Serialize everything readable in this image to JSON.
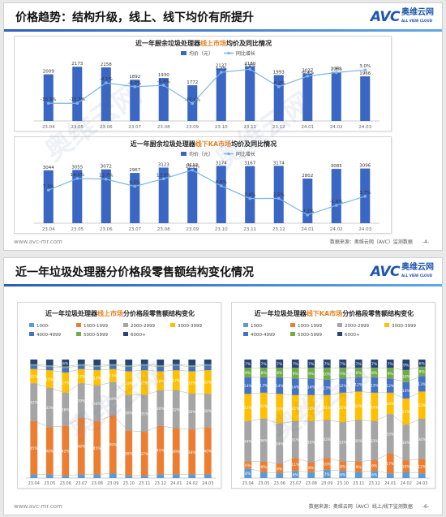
{
  "slide1": {
    "title": "价格趋势：结构升级，线上、线下均价有所提升",
    "logo": {
      "brand": "AVC",
      "name_cn": "奥维云网",
      "name_en": "ALL VIEW CLOUD"
    },
    "footer_url": "www.avc-mr.com",
    "footer_source": "数据来源：奥维云网（AVC）监测数据",
    "page_number": "-4-"
  },
  "slide2": {
    "title": "近一年垃圾处理器分价格段零售额结构变化情况",
    "logo": {
      "brand": "AVC",
      "name_cn": "奥维云网",
      "name_en": "ALL VIEW CLOUD"
    },
    "footer_url": "www.avc-mr.com",
    "footer_source": "数据来源：奥维云网（AVC）线上/线下监测数据",
    "page_number": "-6-"
  },
  "watermark": "奥维云网",
  "colors": {
    "bar": "#3a66c4",
    "line": "#7fb5e8",
    "accent": "#e97e1c",
    "brand": "#1d54b0",
    "segments": [
      "#5b9bd5",
      "#ed7d31",
      "#a5a5a5",
      "#ffc000",
      "#4472c4",
      "#70ad47",
      "#264478"
    ]
  },
  "chart_data": [
    {
      "type": "bar",
      "title_prefix": "近一年厨余垃圾处理器",
      "title_highlight": "线上市场",
      "title_suffix": "均价及同比情况",
      "categories": [
        "23.04",
        "23.05",
        "23.06",
        "23.07",
        "23.08",
        "23.09",
        "23.10",
        "23.11",
        "23.12",
        "24.01",
        "24.02",
        "24.03"
      ],
      "series": [
        {
          "name": "均价（元）",
          "type": "bar",
          "values": [
            2009,
            2173,
            2158,
            1892,
            1930,
            1772,
            2137,
            2180,
            1993,
            2027,
            2061,
            1966
          ]
        },
        {
          "name": "同比增长",
          "type": "line",
          "values": [
            "-15.3%",
            "-15.3%",
            "-4.1%",
            "-6.2%",
            "-5.4%",
            "-15.4%",
            "1.7%",
            "3.4%",
            "-6.2%",
            "-0.4%",
            "1.6%",
            "3.0%"
          ]
        }
      ],
      "ylim_bar": [
        1000,
        2300
      ],
      "ylim_line": [
        -25,
        8
      ]
    },
    {
      "type": "bar",
      "title_prefix": "近一年厨余垃圾处理器",
      "title_highlight": "线下KA市场",
      "title_suffix": "均价及同比情况",
      "categories": [
        "23.04",
        "23.05",
        "23.06",
        "23.07",
        "23.08",
        "23.09",
        "23.10",
        "23.11",
        "23.12",
        "24.01",
        "24.02",
        "24.03"
      ],
      "series": [
        {
          "name": "均价（元）",
          "type": "bar",
          "values": [
            3044,
            3055,
            3072,
            2967,
            3123,
            3112,
            3174,
            3167,
            3174,
            2802,
            3085,
            3096
          ]
        },
        {
          "name": "同比增长",
          "type": "line",
          "values": [
            "7.3%",
            "14.1%",
            "13.7%",
            "9.5%",
            "13.9%",
            "19.0%",
            "9.8%",
            "2.4%",
            "2.5%",
            "-7.2%",
            "-1.6%",
            "3.7%"
          ]
        }
      ],
      "ylim_bar": [
        1500,
        3300
      ],
      "ylim_line": [
        -12,
        24
      ]
    },
    {
      "type": "bar",
      "stacked": true,
      "title_prefix": "近一年垃圾处理器",
      "title_highlight": "线上市场",
      "title_suffix": "分价格段零售额结构变化",
      "categories": [
        "23.04",
        "23.05",
        "23.06",
        "23.07",
        "23.08",
        "23.09",
        "23.10",
        "23.11",
        "23.12",
        "24.01",
        "24.02",
        "24.03"
      ],
      "legend": [
        "1000-",
        "1000-1999",
        "2000-2999",
        "3000-3999",
        "4000-4999",
        "5000-5999",
        "6000+"
      ],
      "series": [
        {
          "name": "1000-",
          "values": [
            3,
            3,
            2,
            3,
            3,
            4,
            2,
            2,
            3,
            3,
            3,
            3
          ]
        },
        {
          "name": "1000-1999",
          "values": [
            45,
            40,
            42,
            48,
            45,
            49,
            38,
            37,
            41,
            39,
            38,
            40
          ]
        },
        {
          "name": "2000-2999",
          "values": [
            32,
            33,
            28,
            29,
            30,
            28,
            30,
            31,
            30,
            32,
            30,
            28
          ]
        },
        {
          "name": "3000-3999",
          "values": [
            12,
            15,
            17,
            12,
            13,
            11,
            20,
            21,
            16,
            17,
            19,
            20
          ]
        },
        {
          "name": "4000-4999",
          "values": [
            3,
            3,
            4,
            3,
            3,
            3,
            4,
            4,
            4,
            4,
            4,
            4
          ]
        },
        {
          "name": "5000-5999",
          "values": [
            1,
            1,
            1,
            1,
            1,
            1,
            1,
            1,
            1,
            1,
            1,
            1
          ]
        },
        {
          "name": "6000+",
          "values": [
            4,
            5,
            6,
            4,
            5,
            4,
            5,
            4,
            5,
            4,
            5,
            4
          ]
        }
      ],
      "ylim": [
        0,
        100
      ]
    },
    {
      "type": "bar",
      "stacked": true,
      "title_prefix": "近一年垃圾处理器",
      "title_highlight": "线下KA市场",
      "title_suffix": "分价格段零售额结构变化",
      "categories": [
        "23.04",
        "23.05",
        "23.06",
        "23.07",
        "23.08",
        "23.09",
        "23.10",
        "23.11",
        "23.12",
        "24.01",
        "24.02",
        "24.03"
      ],
      "legend": [
        "1000-",
        "1000-1999",
        "2000-2999",
        "3000-3999",
        "4000-4999",
        "5000-5999",
        "6000+"
      ],
      "series": [
        {
          "name": "1000-",
          "values": [
            8,
            5,
            4,
            6,
            5,
            7,
            6,
            5,
            6,
            4,
            5,
            4
          ]
        },
        {
          "name": "1000-1999",
          "values": [
            6,
            9,
            8,
            11,
            8,
            10,
            8,
            9,
            9,
            17,
            10,
            12
          ]
        },
        {
          "name": "2000-2999",
          "values": [
            34,
            36,
            34,
            31,
            35,
            32,
            33,
            35,
            33,
            33,
            30,
            34
          ]
        },
        {
          "name": "3000-3999",
          "values": [
            23,
            22,
            25,
            22,
            22,
            21,
            25,
            24,
            24,
            18,
            22,
            23
          ]
        },
        {
          "name": "4000-4999",
          "values": [
            14,
            13,
            14,
            14,
            14,
            13,
            12,
            12,
            13,
            12,
            14,
            13
          ]
        },
        {
          "name": "5000-5999",
          "values": [
            8,
            8,
            8,
            9,
            9,
            10,
            9,
            8,
            8,
            9,
            10,
            8
          ]
        },
        {
          "name": "6000+",
          "values": [
            7,
            7,
            7,
            7,
            7,
            7,
            7,
            7,
            7,
            7,
            9,
            6
          ]
        }
      ],
      "ylim": [
        0,
        100
      ]
    }
  ]
}
